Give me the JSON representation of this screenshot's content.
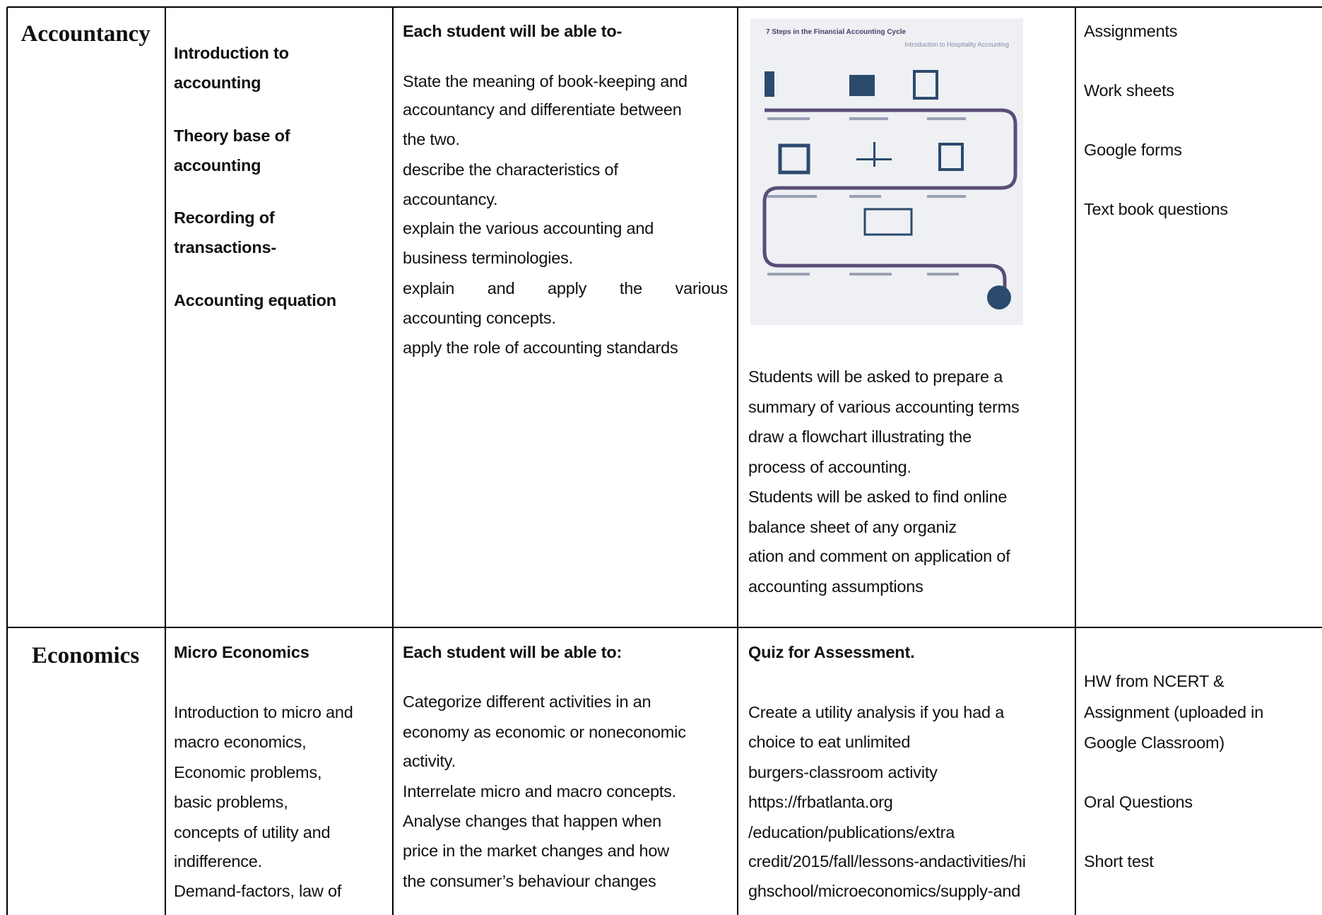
{
  "table": {
    "rows": [
      {
        "subject": "Accountancy",
        "topics": {
          "lines": [
            "Introduction to",
            "accounting",
            "Theory base of",
            "accounting",
            "Recording of",
            "transactions-",
            "Accounting equation"
          ]
        },
        "outcomes": {
          "heading": "Each student will be able to-",
          "lines": [
            "State the meaning of book-keeping and",
            "accountancy and differentiate between",
            "the two.",
            "describe the characteristics of",
            "accountancy.",
            "explain the various accounting and",
            "business terminologies.",
            "explain and apply the various",
            "accounting concepts.",
            "apply the role of accounting  standards"
          ]
        },
        "activities": {
          "figure": {
            "title": "7 Steps in the Financial Accounting Cycle",
            "subtitle": "Introduction to Hospitality Accounting"
          },
          "lines": [
            "Students will be asked to prepare a",
            "summary of various accounting terms",
            "draw a flowchart illustrating the",
            "process of accounting.",
            "Students will be asked to find online",
            "balance sheet of any organiz",
            "ation and comment on application of",
            "accounting assumptions"
          ]
        },
        "assessment": {
          "lines": [
            "Assignments",
            "Work sheets",
            "Google forms",
            "Text book questions"
          ]
        }
      },
      {
        "subject": "Economics",
        "topics": {
          "heading": "Micro Economics",
          "lines": [
            "Introduction to micro and",
            "macro economics,",
            "Economic problems,",
            "basic problems,",
            "concepts of utility and",
            "indifference.",
            "Demand-factors, law of"
          ]
        },
        "outcomes": {
          "heading": "Each student will be able to:",
          "lines": [
            "Categorize different activities in an",
            "economy as economic or noneconomic",
            "activity.",
            " Interrelate micro and macro concepts.",
            "Analyse changes that happen when",
            "price in the market changes and how",
            "the consumer’s behaviour changes"
          ]
        },
        "activities": {
          "heading": "Quiz for Assessment.",
          "lines": [
            "Create a utility analysis if you had a",
            "choice to eat unlimited",
            "burgers-classroom activity",
            "https://frbatlanta.org",
            "/education/publications/extra",
            "credit/2015/fall/lessons-andactivities/hi",
            "ghschool/microeconomics/supply-and"
          ]
        },
        "assessment": {
          "lines": [
            "HW from NCERT &",
            "Assignment (uploaded in",
            "Google Classroom)",
            "Oral Questions",
            "Short test"
          ]
        }
      }
    ]
  }
}
